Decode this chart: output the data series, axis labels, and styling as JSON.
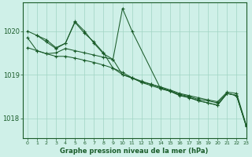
{
  "bg_color": "#cff0e8",
  "grid_color": "#a0d4c4",
  "line_color": "#1a5c2a",
  "title": "Graphe pression niveau de la mer (hPa)",
  "title_color": "#1a5c2a",
  "xlim": [
    -0.5,
    23
  ],
  "ylim": [
    1017.55,
    1020.65
  ],
  "yticks": [
    1018,
    1019,
    1020
  ],
  "xticks": [
    0,
    1,
    2,
    3,
    4,
    5,
    6,
    7,
    8,
    9,
    10,
    11,
    12,
    13,
    14,
    15,
    16,
    17,
    18,
    19,
    20,
    21,
    22,
    23
  ],
  "lines": [
    {
      "x": [
        0,
        1,
        2,
        3,
        4,
        5,
        6,
        7,
        8,
        9,
        10,
        11,
        12,
        13,
        14,
        15,
        16,
        17,
        18,
        19,
        20,
        21,
        22,
        23
      ],
      "y": [
        1019.85,
        1019.55,
        1019.48,
        1019.5,
        1019.6,
        1019.55,
        1019.5,
        1019.45,
        1019.4,
        1019.35,
        1019.0,
        1018.92,
        1018.83,
        1018.78,
        1018.72,
        1018.65,
        1018.57,
        1018.52,
        1018.47,
        1018.42,
        1018.38,
        1018.6,
        1018.57,
        1017.85
      ]
    },
    {
      "x": [
        0,
        1,
        2,
        3,
        4,
        5,
        6,
        7,
        8,
        9,
        10,
        11,
        12,
        13,
        14,
        15,
        16,
        17,
        18,
        19,
        20,
        21,
        22,
        23
      ],
      "y": [
        1019.62,
        1019.55,
        1019.48,
        1019.42,
        1019.42,
        1019.38,
        1019.33,
        1019.28,
        1019.22,
        1019.15,
        1019.0,
        1018.93,
        1018.85,
        1018.78,
        1018.7,
        1018.63,
        1018.55,
        1018.5,
        1018.43,
        1018.4,
        1018.35,
        1018.57,
        1018.52,
        1017.82
      ]
    },
    {
      "x": [
        1,
        2,
        3,
        4,
        5,
        6,
        7,
        8,
        9,
        10,
        11,
        12,
        13,
        14,
        15,
        16,
        17,
        18,
        19,
        20,
        21,
        22,
        23
      ],
      "y": [
        1019.9,
        1019.8,
        1019.62,
        1019.72,
        1020.2,
        1019.95,
        1019.75,
        1019.5,
        1019.15,
        1019.05,
        1018.93,
        1018.82,
        1018.75,
        1018.68,
        1018.62,
        1018.53,
        1018.48,
        1018.4,
        1018.35,
        1018.3,
        1018.57,
        1018.52,
        1017.83
      ]
    },
    {
      "x": [
        0,
        1,
        2,
        3,
        4,
        5,
        6,
        7,
        8,
        9,
        10,
        11,
        14,
        15,
        16,
        17,
        18,
        19,
        20,
        21,
        22,
        23
      ],
      "y": [
        1020.0,
        1019.9,
        1019.75,
        1019.6,
        1019.72,
        1020.22,
        1020.0,
        1019.72,
        1019.48,
        1019.35,
        1020.52,
        1020.0,
        1018.68,
        1018.62,
        1018.52,
        1018.47,
        1018.4,
        1018.35,
        1018.3,
        1018.57,
        1018.52,
        1017.83
      ]
    }
  ]
}
